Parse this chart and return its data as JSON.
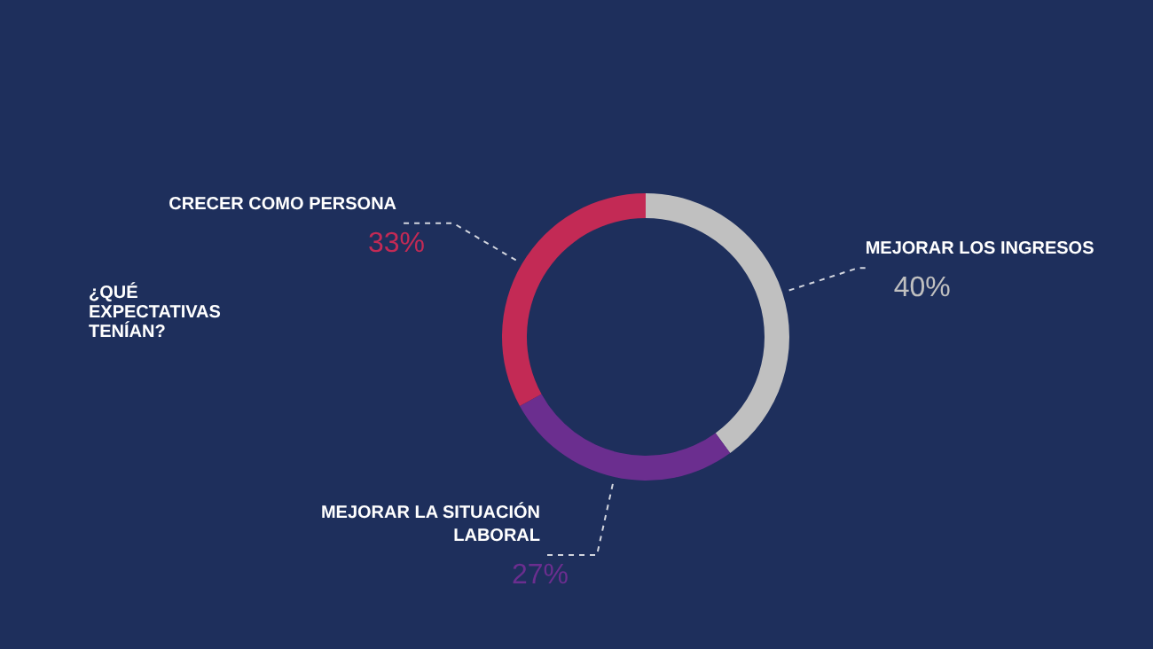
{
  "chart_data": {
    "type": "donut",
    "title": "¿QUÉ EXPECTATIVAS TENÍAN?",
    "categories": [
      "MEJORAR LOS INGRESOS",
      "MEJORAR LA SITUACIÓN LABORAL",
      "CRECER COMO PERSONA"
    ],
    "values": [
      40,
      27,
      33
    ],
    "value_labels": [
      "40%",
      "27%",
      "33%"
    ],
    "colors": [
      "#c0c0c0",
      "#6b2e8f",
      "#c32a55"
    ]
  }
}
